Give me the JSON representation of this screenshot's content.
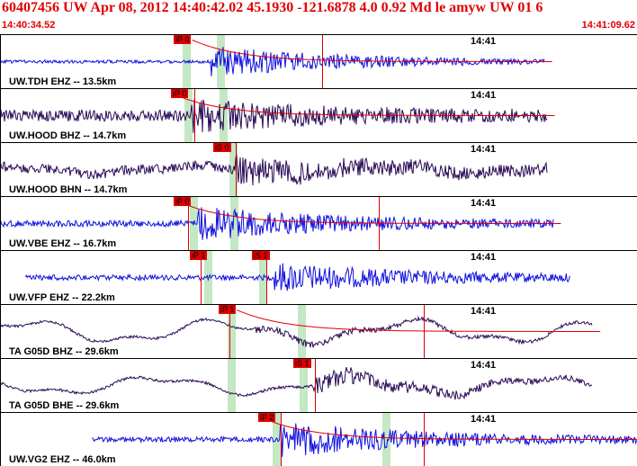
{
  "header": {
    "title": "60407456 UW Apr 08, 2012 14:40:42.02    45.1930 -121.6878  4.0 0.92 Md le amyw UW 01    6",
    "time_start": "14:40:34.52",
    "time_end": "14:41:09.62",
    "accent_color": "#e00000"
  },
  "traces": [
    {
      "label": "UW.TDH EHZ -- 13.5km",
      "tick": "14:41",
      "color": "#1010e0",
      "seed": 3,
      "start": 0.0,
      "end": 0.855,
      "onset": 0.33,
      "amp": 0.55,
      "bg": 0.06,
      "lf": 0,
      "picks": [
        {
          "text": "iP 0",
          "pos": 0.272
        }
      ],
      "windows": [
        0.287,
        0.34
      ],
      "fit": true,
      "marks": [
        0.505
      ]
    },
    {
      "label": "UW.HOOD BHZ -- 14.7km",
      "tick": "14:41",
      "color": "#2a0a55",
      "seed": 7,
      "start": 0.0,
      "end": 0.86,
      "onset": 0.3,
      "amp": 0.45,
      "bg": 0.22,
      "lf": 0,
      "picks": [
        {
          "text": "iP 0",
          "pos": 0.268
        }
      ],
      "windows": [
        0.29,
        0.345
      ],
      "fit": true,
      "marks": [
        0.305
      ]
    },
    {
      "label": "UW.HOOD BHN -- 14.7km",
      "tick": "14:41",
      "color": "#2a0a55",
      "seed": 11,
      "start": 0.0,
      "end": 0.86,
      "onset": 0.37,
      "amp": 0.4,
      "bg": 0.18,
      "lf": 0.25,
      "picks": [
        {
          "text": "iS 0",
          "pos": 0.335
        }
      ],
      "windows": [
        0.36
      ],
      "fit": false,
      "marks": [
        0.37
      ]
    },
    {
      "label": "UW.VBE EHZ -- 16.7km",
      "tick": "14:41",
      "color": "#1010e0",
      "seed": 17,
      "start": 0.0,
      "end": 0.87,
      "onset": 0.31,
      "amp": 0.55,
      "bg": 0.12,
      "lf": 0,
      "picks": [
        {
          "text": "iP 0",
          "pos": 0.272
        }
      ],
      "windows": [
        0.298,
        0.362
      ],
      "fit": true,
      "marks": [
        0.295,
        0.595
      ]
    },
    {
      "label": "UW.VFP EHZ -- 22.2km",
      "tick": "14:41",
      "color": "#1010e0",
      "seed": 23,
      "start": 0.04,
      "end": 0.895,
      "onset": 0.43,
      "amp": 0.5,
      "bg": 0.1,
      "lf": 0,
      "picks": [
        {
          "text": "iP 1",
          "pos": 0.298
        },
        {
          "text": "iS 1",
          "pos": 0.395
        }
      ],
      "windows": [
        0.32,
        0.407
      ],
      "fit": false,
      "marks": [
        0.315,
        0.418
      ]
    },
    {
      "label": "TA G05D BHZ -- 29.6km",
      "tick": "14:41",
      "color": "#2a0a55",
      "seed": 29,
      "start": 0.0,
      "end": 0.93,
      "onset": 0.4,
      "amp": 0.12,
      "bg": 0.05,
      "lf": 0.7,
      "picks": [
        {
          "text": "iP 1",
          "pos": 0.343
        }
      ],
      "windows": [
        0.357,
        0.468
      ],
      "fit": true,
      "marks": [
        0.36,
        0.665
      ]
    },
    {
      "label": "TA G05D BHE -- 29.6km",
      "tick": "14:41",
      "color": "#2a0a55",
      "seed": 31,
      "start": 0.0,
      "end": 0.93,
      "onset": 0.49,
      "amp": 0.35,
      "bg": 0.05,
      "lf": 0.55,
      "picks": [
        {
          "text": "iS 1",
          "pos": 0.46
        }
      ],
      "windows": [
        0.357,
        0.47
      ],
      "fit": false,
      "marks": [
        0.495
      ]
    },
    {
      "label": "UW.VG2 EHZ -- 46.0km",
      "tick": "14:41",
      "color": "#1010e0",
      "seed": 37,
      "start": 0.145,
      "end": 1.0,
      "onset": 0.44,
      "amp": 0.6,
      "bg": 0.1,
      "lf": 0,
      "picks": [
        {
          "text": "iP 2",
          "pos": 0.405
        }
      ],
      "windows": [
        0.428,
        0.6
      ],
      "fit": true,
      "marks": [
        0.44,
        0.665
      ]
    }
  ]
}
